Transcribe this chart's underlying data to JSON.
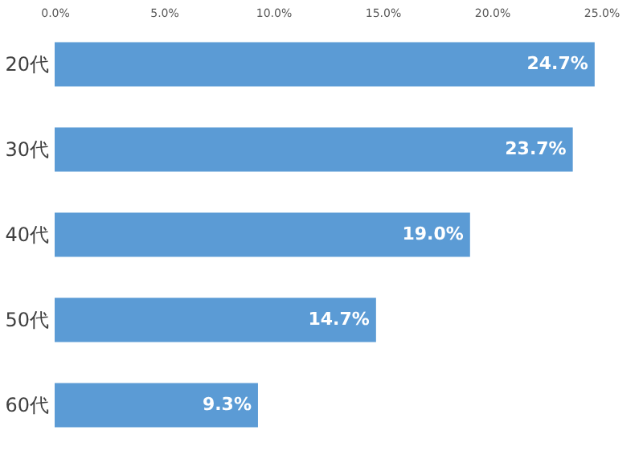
{
  "chart_data": {
    "type": "bar",
    "orientation": "horizontal",
    "categories": [
      "20代",
      "30代",
      "40代",
      "50代",
      "60代"
    ],
    "values": [
      24.7,
      23.7,
      19.0,
      14.7,
      9.3
    ],
    "value_labels": [
      "24.7%",
      "23.7%",
      "19.0%",
      "14.7%",
      "9.3%"
    ],
    "color": "#5b9bd5",
    "xlim": [
      0,
      25
    ],
    "xticks": [
      {
        "value": 0,
        "label": "0.0%"
      },
      {
        "value": 5,
        "label": "5.0%"
      },
      {
        "value": 10,
        "label": "10.0%"
      },
      {
        "value": 15,
        "label": "15.0%"
      },
      {
        "value": 20,
        "label": "20.0%"
      },
      {
        "value": 25,
        "label": "25.0%"
      }
    ],
    "grid": false
  }
}
